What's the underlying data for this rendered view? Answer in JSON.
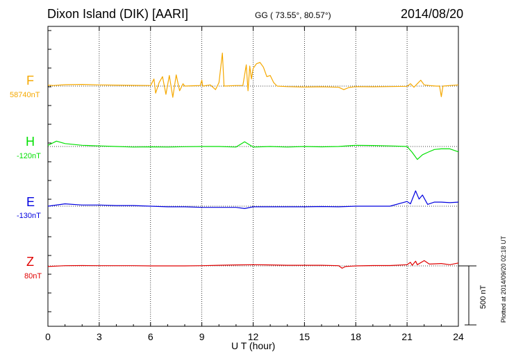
{
  "header": {
    "title": "Dixon Island (DIK)  [AARI]",
    "coords": "GG ( 73.55°,  80.57°)",
    "date": "2014/08/20"
  },
  "side_note": "Plotted at 2014/09/20 02:18 UT",
  "scale_label": "500 nT",
  "chart_data": {
    "type": "line",
    "xlabel": "U T (hour)",
    "xlim": [
      0,
      24
    ],
    "xticks": [
      0,
      3,
      6,
      9,
      12,
      15,
      18,
      21,
      24
    ],
    "scale_bar_nT": 500,
    "series": [
      {
        "name": "F",
        "baseline_label": "58740nT",
        "color": "#f5a800",
        "offsets_nT": [
          [
            0,
            -8
          ],
          [
            0.3,
            -5
          ],
          [
            1,
            -12
          ],
          [
            2,
            -14
          ],
          [
            3,
            -10
          ],
          [
            4,
            -8
          ],
          [
            5,
            -6
          ],
          [
            6,
            -5
          ],
          [
            6.2,
            -60
          ],
          [
            6.3,
            60
          ],
          [
            6.5,
            -30
          ],
          [
            6.7,
            -80
          ],
          [
            6.9,
            70
          ],
          [
            7.1,
            -90
          ],
          [
            7.3,
            95
          ],
          [
            7.5,
            -95
          ],
          [
            7.7,
            40
          ],
          [
            7.9,
            -20
          ],
          [
            8,
            0
          ],
          [
            8.5,
            -3
          ],
          [
            8.9,
            -5
          ],
          [
            9,
            -50
          ],
          [
            9.05,
            0
          ],
          [
            9.5,
            -10
          ],
          [
            9.8,
            30
          ],
          [
            10,
            -30
          ],
          [
            10.2,
            -280
          ],
          [
            10.3,
            0
          ],
          [
            11,
            -5
          ],
          [
            11.4,
            -5
          ],
          [
            11.6,
            -180
          ],
          [
            11.7,
            40
          ],
          [
            11.8,
            -170
          ],
          [
            11.9,
            -60
          ],
          [
            12,
            -150
          ],
          [
            12.2,
            -190
          ],
          [
            12.4,
            -200
          ],
          [
            12.6,
            -160
          ],
          [
            12.8,
            -80
          ],
          [
            13,
            -90
          ],
          [
            13.2,
            -30
          ],
          [
            13.4,
            0
          ],
          [
            14,
            5
          ],
          [
            15,
            8
          ],
          [
            16,
            6
          ],
          [
            17,
            10
          ],
          [
            17.3,
            30
          ],
          [
            17.6,
            12
          ],
          [
            18,
            5
          ],
          [
            19,
            6
          ],
          [
            20,
            4
          ],
          [
            21,
            2
          ],
          [
            21.2,
            -20
          ],
          [
            21.4,
            10
          ],
          [
            21.6,
            -20
          ],
          [
            21.8,
            -50
          ],
          [
            22,
            -10
          ],
          [
            22.3,
            -5
          ],
          [
            22.7,
            0
          ],
          [
            22.9,
            0
          ],
          [
            23,
            90
          ],
          [
            23.1,
            0
          ],
          [
            23.5,
            -5
          ],
          [
            24,
            -10
          ]
        ]
      },
      {
        "name": "H",
        "baseline_label": "-120nT",
        "color": "#00e000",
        "offsets_nT": [
          [
            0,
            -10
          ],
          [
            0.5,
            -45
          ],
          [
            1,
            -25
          ],
          [
            2,
            -10
          ],
          [
            3,
            -5
          ],
          [
            4,
            0
          ],
          [
            5,
            5
          ],
          [
            6,
            3
          ],
          [
            7,
            5
          ],
          [
            8,
            2
          ],
          [
            9,
            0
          ],
          [
            10,
            0
          ],
          [
            11,
            5
          ],
          [
            11.5,
            -40
          ],
          [
            12,
            5
          ],
          [
            13,
            0
          ],
          [
            14,
            5
          ],
          [
            15,
            0
          ],
          [
            16,
            3
          ],
          [
            17,
            0
          ],
          [
            18,
            -10
          ],
          [
            19,
            -8
          ],
          [
            20,
            -5
          ],
          [
            21,
            0
          ],
          [
            21.3,
            50
          ],
          [
            21.6,
            110
          ],
          [
            21.9,
            70
          ],
          [
            22.2,
            50
          ],
          [
            22.6,
            25
          ],
          [
            23,
            20
          ],
          [
            23.5,
            20
          ],
          [
            24,
            45
          ]
        ]
      },
      {
        "name": "E",
        "baseline_label": "-130nT",
        "color": "#0000e0",
        "offsets_nT": [
          [
            0,
            0
          ],
          [
            1,
            -20
          ],
          [
            2,
            -10
          ],
          [
            3,
            -10
          ],
          [
            4,
            -5
          ],
          [
            5,
            -5
          ],
          [
            6,
            0
          ],
          [
            7,
            5
          ],
          [
            8,
            5
          ],
          [
            9,
            10
          ],
          [
            10,
            10
          ],
          [
            11,
            10
          ],
          [
            11.5,
            20
          ],
          [
            12,
            5
          ],
          [
            13,
            5
          ],
          [
            14,
            5
          ],
          [
            15,
            5
          ],
          [
            16,
            3
          ],
          [
            17,
            5
          ],
          [
            18,
            0
          ],
          [
            19,
            0
          ],
          [
            20,
            0
          ],
          [
            21,
            -40
          ],
          [
            21.2,
            -20
          ],
          [
            21.5,
            -130
          ],
          [
            21.7,
            -60
          ],
          [
            21.9,
            -95
          ],
          [
            22.2,
            -15
          ],
          [
            22.6,
            -35
          ],
          [
            23,
            -35
          ],
          [
            23.5,
            -30
          ],
          [
            24,
            -35
          ]
        ]
      },
      {
        "name": "Z",
        "baseline_label": "80nT",
        "color": "#e00000",
        "offsets_nT": [
          [
            0,
            5
          ],
          [
            1,
            -2
          ],
          [
            2,
            -3
          ],
          [
            3,
            -2
          ],
          [
            4,
            -2
          ],
          [
            5,
            -2
          ],
          [
            6,
            0
          ],
          [
            7,
            0
          ],
          [
            8,
            0
          ],
          [
            9,
            -2
          ],
          [
            10,
            -5
          ],
          [
            11,
            -8
          ],
          [
            12,
            -10
          ],
          [
            13,
            -8
          ],
          [
            14,
            -5
          ],
          [
            15,
            -5
          ],
          [
            16,
            -5
          ],
          [
            17,
            -2
          ],
          [
            17.2,
            20
          ],
          [
            17.4,
            5
          ],
          [
            18,
            0
          ],
          [
            19,
            -3
          ],
          [
            20,
            -3
          ],
          [
            21,
            -10
          ],
          [
            21.2,
            -30
          ],
          [
            21.3,
            -5
          ],
          [
            21.5,
            -40
          ],
          [
            21.6,
            -10
          ],
          [
            22,
            -45
          ],
          [
            22.3,
            -15
          ],
          [
            23,
            -20
          ],
          [
            23.5,
            -10
          ],
          [
            24,
            -25
          ]
        ]
      }
    ]
  }
}
